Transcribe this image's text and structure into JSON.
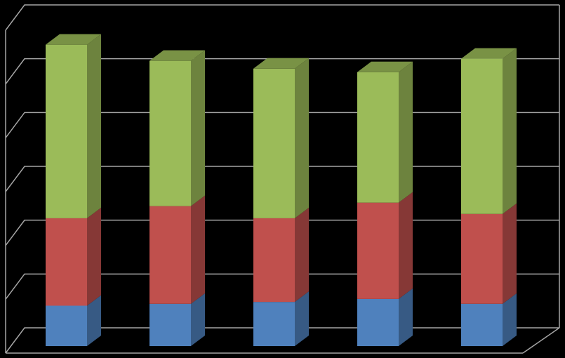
{
  "chart_data": {
    "type": "bar",
    "stacked": true,
    "categories": [
      null,
      null,
      null,
      null,
      null
    ],
    "series": [
      {
        "color": "#4f81bd",
        "values": [
          15,
          15.7,
          16.4,
          17.5,
          15.7
        ]
      },
      {
        "color": "#c0504d",
        "values": [
          32.5,
          36.3,
          31.1,
          35.8,
          33.4
        ]
      },
      {
        "color": "#9bbb59",
        "values": [
          64.5,
          54,
          55.6,
          48.5,
          57.7
        ]
      }
    ],
    "ylim": [
      0,
      120
    ],
    "yticks": [
      0,
      20,
      40,
      60,
      80,
      100,
      120
    ],
    "grid": true
  }
}
